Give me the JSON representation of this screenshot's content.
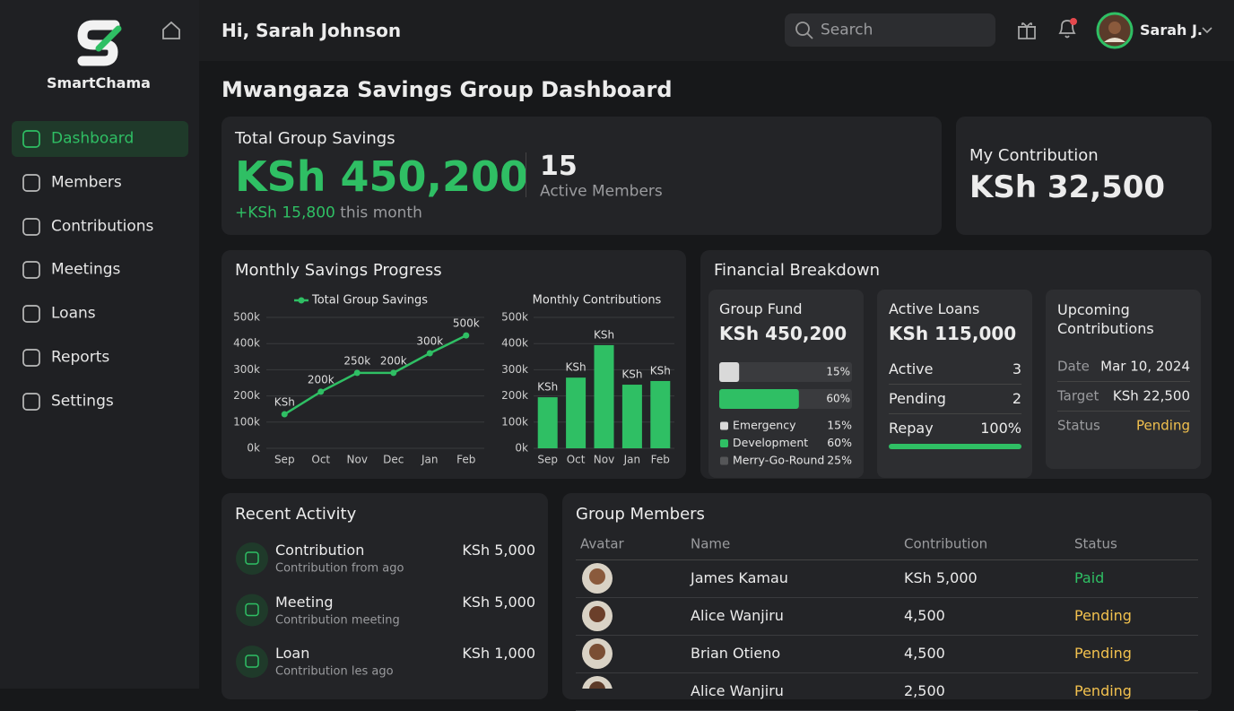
{
  "sidebar": {
    "brand": "SmartChama",
    "nav": [
      "Dashboard",
      "Members",
      "Contributions",
      "Meetings",
      "Loans",
      "Reports",
      "Settings"
    ]
  },
  "header": {
    "greeting": "Hi, Sarah Johnson",
    "search_placeholder": "Search",
    "user": "Sarah J."
  },
  "page_title": "Mwangaza Savings Group Dashboard",
  "summary": {
    "label": "Total Group Savings",
    "amount": "KSh 450,200",
    "change": "+KSh 15,800",
    "change_suffix": "this month",
    "members_count": "15",
    "members_label": "Active Members"
  },
  "my_contribution": {
    "label": "My Contribution",
    "amount": "KSh 32,500"
  },
  "progress": {
    "title": "Monthly Savings Progress"
  },
  "chart_data": [
    {
      "type": "line",
      "categories": [
        "Sep",
        "Oct",
        "Nov",
        "Dec",
        "Jan",
        "Feb"
      ],
      "series": [
        {
          "name": "Total Group Savings",
          "color": "#2fbf64",
          "values": [
            130000,
            216000,
            288000,
            288000,
            363000,
            431000
          ]
        }
      ],
      "annotations": [
        "KSh",
        "200k",
        "250k",
        "200k",
        "300k",
        "500k"
      ],
      "ylim": [
        0,
        500000
      ],
      "yticks": [
        {
          "value": 0,
          "label": "0k"
        },
        {
          "value": 100000,
          "label": "100k"
        },
        {
          "value": 200000,
          "label": "200k"
        },
        {
          "value": 300000,
          "label": "300k"
        },
        {
          "value": 400000,
          "label": "400k"
        },
        {
          "value": 500000,
          "label": "500k"
        }
      ],
      "grid": true,
      "legend": "top"
    },
    {
      "type": "bar",
      "title": "Monthly Contributions",
      "categories": [
        "Sep",
        "Oct",
        "Nov",
        "Jan",
        "Feb"
      ],
      "values": [
        195000,
        270000,
        394000,
        243000,
        257000
      ],
      "color": "#2fbf64",
      "annotations": [
        "KSh",
        "KSh",
        "KSh",
        "KSh",
        "KSh"
      ],
      "ylim": [
        0,
        500000
      ],
      "yticks": [
        {
          "value": 0,
          "label": "0k"
        },
        {
          "value": 100000,
          "label": "100k"
        },
        {
          "value": 200000,
          "label": "200k"
        },
        {
          "value": 300000,
          "label": "300k"
        },
        {
          "value": 400000,
          "label": "400k"
        },
        {
          "value": 500000,
          "label": "500k"
        }
      ],
      "grid": true
    }
  ],
  "breakdown": {
    "title": "Financial Breakdown",
    "group_fund": {
      "label": "Group Fund",
      "amount": "KSh 450,200",
      "allocation": {
        "categories": [
          "Emergency",
          "Development",
          "Merry-Go-Round"
        ],
        "values": [
          15,
          60,
          25
        ],
        "value_labels": [
          "15%",
          "60%",
          "25%"
        ],
        "colors": [
          "#d9d9d9",
          "#2fbf64",
          "#555658"
        ]
      }
    },
    "active_loans": {
      "label": "Active Loans",
      "amount": "KSh 115,000",
      "rows": [
        [
          "Active",
          "3"
        ],
        [
          "Pending",
          "2"
        ]
      ],
      "repay": {
        "label": "Repay",
        "value": 100,
        "value_label": "100%"
      }
    },
    "upcoming": {
      "title": "Upcoming Contributions",
      "rows": [
        [
          "Date",
          "Mar 10, 2024"
        ],
        [
          "Target",
          "KSh 22,500"
        ],
        [
          "Status",
          "Pending"
        ]
      ]
    }
  },
  "activity": {
    "title": "Recent Activity",
    "items": [
      {
        "title": "Contribution",
        "subtitle": "Contribution from ago",
        "amount": "KSh 5,000"
      },
      {
        "title": "Meeting",
        "subtitle": "Contribution meeting",
        "amount": "KSh 5,000"
      },
      {
        "title": "Loan",
        "subtitle": "Contribution les ago",
        "amount": "KSh 1,000"
      }
    ]
  },
  "members": {
    "title": "Group Members",
    "columns": [
      "Avatar",
      "Name",
      "Contribution",
      "Status"
    ],
    "rows": [
      {
        "name": "James Kamau",
        "contribution": "KSh 5,000",
        "status": "Paid"
      },
      {
        "name": "Alice Wanjiru",
        "contribution": "4,500",
        "status": "Pending"
      },
      {
        "name": "Brian Otieno",
        "contribution": "4,500",
        "status": "Pending"
      },
      {
        "name": "Alice Wanjiru",
        "contribution": "2,500",
        "status": "Pending"
      }
    ]
  }
}
